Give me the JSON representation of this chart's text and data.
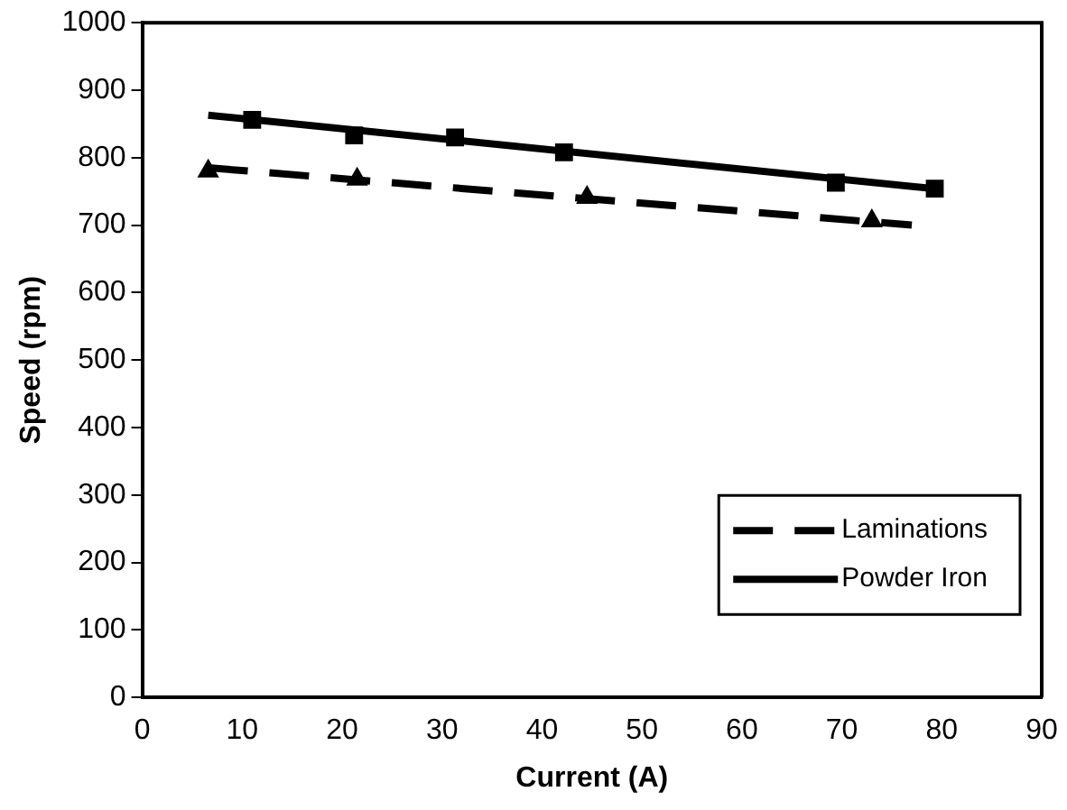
{
  "chart_data": {
    "type": "line",
    "xlabel": "Current (A)",
    "ylabel": "Speed (rpm)",
    "xlim": [
      0,
      90
    ],
    "xticks": [
      0,
      10,
      20,
      30,
      40,
      50,
      60,
      70,
      80,
      90
    ],
    "ylim": [
      0,
      1000
    ],
    "yticks": [
      0,
      100,
      200,
      300,
      400,
      500,
      600,
      700,
      800,
      900,
      1000
    ],
    "grid": false,
    "legend": "bottom right",
    "series": [
      {
        "name": "Laminations",
        "color": "#000000",
        "line_style": "dashed",
        "marker": "none",
        "x": [
          6.6,
          77
        ],
        "values": [
          785,
          700
        ]
      },
      {
        "name": "Powder Iron",
        "color": "#000000",
        "line_style": "solid",
        "marker": "none",
        "x": [
          6.6,
          79.3
        ],
        "values": [
          863,
          754
        ]
      },
      {
        "type": "scatter",
        "color": "#000000",
        "marker": "triangle",
        "x": [
          6.6,
          21.5,
          44.5,
          73
        ],
        "values": [
          780,
          768,
          741,
          706
        ]
      },
      {
        "type": "scatter",
        "color": "#000000",
        "marker": "square",
        "x": [
          11,
          21.2,
          31.3,
          42.2,
          69.4,
          79.3
        ],
        "values": [
          856,
          833,
          830,
          808,
          763,
          754
        ]
      }
    ]
  }
}
